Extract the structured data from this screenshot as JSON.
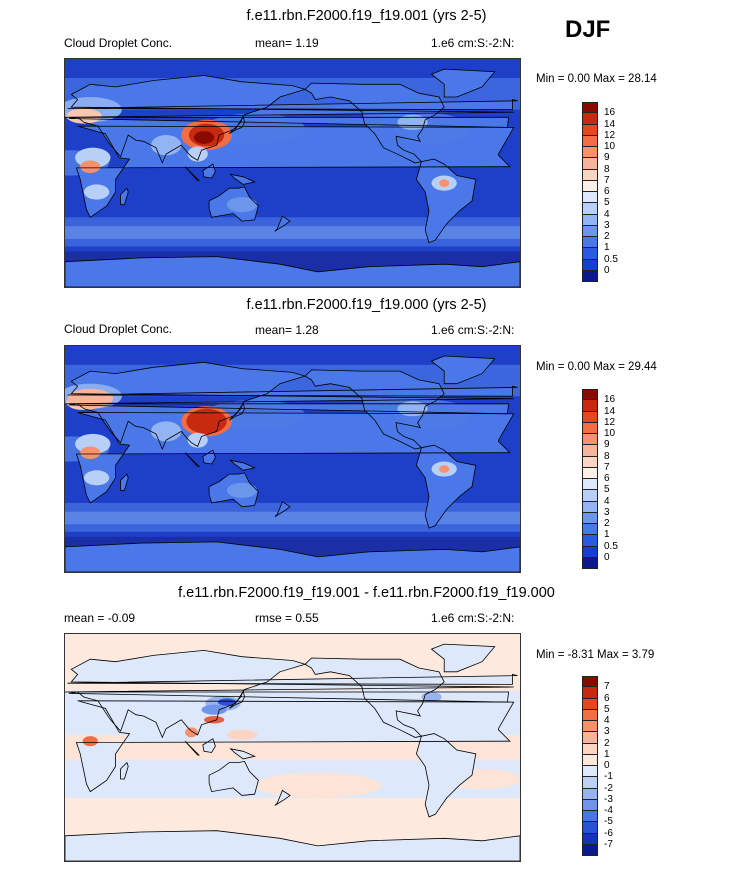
{
  "season": "DJF",
  "panels": [
    {
      "title": "f.e11.rbn.F2000.f19_f19.001 (yrs 2-5)",
      "left_label": "Cloud Droplet Conc.",
      "center_label": "mean=   1.19",
      "right_label": "1.e6 cm:S:-2:N:",
      "minmax": "Min =   0.00 Max =  28.14",
      "colorbar": {
        "labels": [
          "16",
          "14",
          "12",
          "10",
          "9",
          "8",
          "7",
          "6",
          "5",
          "4",
          "3",
          "2",
          "1",
          "0.5",
          "0"
        ],
        "colors": [
          "#8a0a00",
          "#c82a10",
          "#e8461e",
          "#f26c44",
          "#f6916c",
          "#f8b49a",
          "#fbd4c2",
          "#fdf0e8",
          "#dce8fb",
          "#b8d0f8",
          "#92b4f2",
          "#6c96ec",
          "#4a78e8",
          "#2a5ae4",
          "#143ed6",
          "#0a1a8c"
        ]
      },
      "field": "cdnc_a"
    },
    {
      "title": "f.e11.rbn.F2000.f19_f19.000 (yrs 2-5)",
      "left_label": "Cloud Droplet Conc.",
      "center_label": "mean=   1.28",
      "right_label": "1.e6 cm:S:-2:N:",
      "minmax": "Min =   0.00 Max =  29.44",
      "colorbar": {
        "labels": [
          "16",
          "14",
          "12",
          "10",
          "9",
          "8",
          "7",
          "6",
          "5",
          "4",
          "3",
          "2",
          "1",
          "0.5",
          "0"
        ],
        "colors": [
          "#8a0a00",
          "#c82a10",
          "#e8461e",
          "#f26c44",
          "#f6916c",
          "#f8b49a",
          "#fbd4c2",
          "#fdf0e8",
          "#dce8fb",
          "#b8d0f8",
          "#92b4f2",
          "#6c96ec",
          "#4a78e8",
          "#2a5ae4",
          "#143ed6",
          "#0a1a8c"
        ]
      },
      "field": "cdnc_b"
    },
    {
      "title": "f.e11.rbn.F2000.f19_f19.001 - f.e11.rbn.F2000.f19_f19.000",
      "left_label": "mean =  -0.09",
      "center_label": "rmse =   0.55",
      "right_label": "1.e6 cm:S:-2:N:",
      "minmax": "Min =  -8.31 Max =   3.79",
      "colorbar": {
        "labels": [
          "7",
          "6",
          "5",
          "4",
          "3",
          "2",
          "1",
          "0",
          "-1",
          "-2",
          "-3",
          "-4",
          "-5",
          "-6",
          "-7"
        ],
        "colors": [
          "#8a0a00",
          "#c82a10",
          "#e8461e",
          "#f26c44",
          "#f6916c",
          "#f8b49a",
          "#fbd4c2",
          "#fde8dc",
          "#dde8fa",
          "#bcd0f6",
          "#98b4f0",
          "#7094ea",
          "#4c74e4",
          "#2a52d8",
          "#1234b8",
          "#0a1a8c"
        ]
      },
      "field": "diff"
    }
  ],
  "colors": {
    "ocean_low": "#1e3fc8",
    "ocean_mid": "#3a63dc",
    "land_outline": "#000000",
    "diff_background": "#fde9dd",
    "diff_negative": "#d9e6fb"
  }
}
